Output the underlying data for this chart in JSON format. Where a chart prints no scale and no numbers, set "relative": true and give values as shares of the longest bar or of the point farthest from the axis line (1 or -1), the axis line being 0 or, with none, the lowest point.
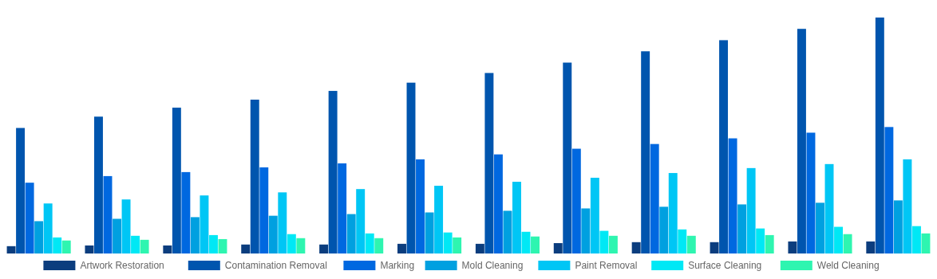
{
  "chart_data": {
    "type": "bar",
    "relative": true,
    "legend": "bottom",
    "categories": [
      null,
      null,
      null,
      null,
      null,
      null,
      null,
      null,
      null,
      null,
      null,
      null
    ],
    "series": [
      {
        "name": "Artwork Restoration",
        "color": "#0b3d7e",
        "values": [
          0.031,
          0.034,
          0.034,
          0.038,
          0.038,
          0.041,
          0.041,
          0.044,
          0.048,
          0.048,
          0.051,
          0.051
        ]
      },
      {
        "name": "Contamination Removal",
        "color": "#0055ae",
        "values": [
          0.532,
          0.58,
          0.618,
          0.652,
          0.689,
          0.724,
          0.765,
          0.809,
          0.857,
          0.904,
          0.952,
          1
        ]
      },
      {
        "name": "Marking",
        "color": "#0068e0",
        "values": [
          0.3,
          0.328,
          0.345,
          0.365,
          0.382,
          0.399,
          0.42,
          0.444,
          0.464,
          0.488,
          0.512,
          0.536
        ]
      },
      {
        "name": "Mold Cleaning",
        "color": "#00a0e0",
        "values": [
          0.137,
          0.147,
          0.154,
          0.16,
          0.167,
          0.174,
          0.181,
          0.191,
          0.198,
          0.208,
          0.215,
          0.225
        ]
      },
      {
        "name": "Paint Removal",
        "color": "#00c6f5",
        "values": [
          0.212,
          0.229,
          0.246,
          0.259,
          0.273,
          0.287,
          0.304,
          0.321,
          0.341,
          0.362,
          0.379,
          0.399
        ]
      },
      {
        "name": "Surface Cleaning",
        "color": "#00e8f5",
        "values": [
          0.068,
          0.075,
          0.078,
          0.082,
          0.085,
          0.089,
          0.092,
          0.096,
          0.102,
          0.106,
          0.113,
          0.116
        ]
      },
      {
        "name": "Weld Cleaning",
        "color": "#2ef5b0",
        "values": [
          0.055,
          0.058,
          0.061,
          0.065,
          0.065,
          0.068,
          0.072,
          0.075,
          0.075,
          0.078,
          0.082,
          0.085
        ]
      }
    ]
  }
}
